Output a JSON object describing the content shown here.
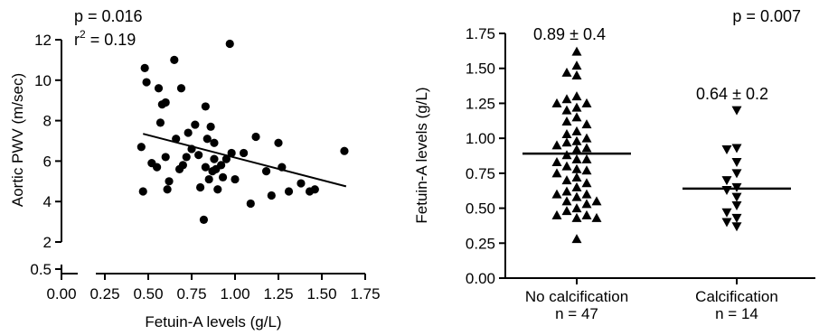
{
  "chart_data": [
    {
      "type": "scatter",
      "xlabel": "Fetuin-A levels (g/L)",
      "ylabel": "Aortic PWV (m/sec)",
      "annotations": {
        "p": "p = 0.016",
        "r2_prefix": "r",
        "r2_sup": "2",
        "r2_suffix": " = 0.19"
      },
      "xlim": [
        0.0,
        1.75
      ],
      "ylim": [
        2,
        12
      ],
      "y_break_tick": {
        "label": "0.5",
        "value": 0.5
      },
      "x_ticks": [
        "0.00",
        "0.25",
        "0.50",
        "0.75",
        "1.00",
        "1.25",
        "1.50",
        "1.75"
      ],
      "x_tick_values": [
        0.0,
        0.25,
        0.5,
        0.75,
        1.0,
        1.25,
        1.5,
        1.75
      ],
      "y_ticks": [
        "2",
        "4",
        "6",
        "8",
        "10",
        "12"
      ],
      "y_tick_values": [
        2,
        4,
        6,
        8,
        10,
        12
      ],
      "grid": false,
      "points": [
        [
          0.46,
          6.7
        ],
        [
          0.47,
          4.5
        ],
        [
          0.48,
          10.6
        ],
        [
          0.49,
          9.9
        ],
        [
          0.52,
          5.9
        ],
        [
          0.55,
          5.7
        ],
        [
          0.56,
          9.6
        ],
        [
          0.58,
          8.8
        ],
        [
          0.57,
          7.9
        ],
        [
          0.6,
          8.9
        ],
        [
          0.61,
          4.6
        ],
        [
          0.62,
          5.0
        ],
        [
          0.6,
          6.2
        ],
        [
          0.65,
          11.0
        ],
        [
          0.66,
          7.1
        ],
        [
          0.68,
          5.6
        ],
        [
          0.69,
          9.6
        ],
        [
          0.7,
          5.8
        ],
        [
          0.72,
          6.2
        ],
        [
          0.73,
          7.4
        ],
        [
          0.75,
          6.6
        ],
        [
          0.77,
          7.8
        ],
        [
          0.79,
          6.3
        ],
        [
          0.8,
          4.7
        ],
        [
          0.82,
          3.1
        ],
        [
          0.83,
          5.7
        ],
        [
          0.83,
          8.7
        ],
        [
          0.84,
          7.1
        ],
        [
          0.85,
          5.1
        ],
        [
          0.86,
          7.7
        ],
        [
          0.87,
          5.5
        ],
        [
          0.88,
          6.9
        ],
        [
          0.88,
          6.1
        ],
        [
          0.89,
          5.6
        ],
        [
          0.9,
          4.6
        ],
        [
          0.92,
          5.8
        ],
        [
          0.93,
          5.2
        ],
        [
          0.95,
          6.1
        ],
        [
          0.97,
          11.8
        ],
        [
          0.98,
          6.4
        ],
        [
          1.0,
          5.1
        ],
        [
          1.05,
          6.4
        ],
        [
          1.09,
          3.9
        ],
        [
          1.12,
          7.2
        ],
        [
          1.18,
          5.5
        ],
        [
          1.21,
          4.3
        ],
        [
          1.25,
          6.9
        ],
        [
          1.27,
          5.7
        ],
        [
          1.31,
          4.5
        ],
        [
          1.38,
          4.9
        ],
        [
          1.43,
          4.5
        ],
        [
          1.46,
          4.6
        ],
        [
          1.63,
          6.5
        ]
      ],
      "regression": {
        "x1": 0.47,
        "y1": 7.35,
        "x2": 1.64,
        "y2": 4.75
      }
    },
    {
      "type": "scatter",
      "ylabel": "Fetuin-A levels (g/L)",
      "ylim": [
        0.0,
        1.75
      ],
      "y_ticks": [
        "0.00",
        "0.25",
        "0.50",
        "0.75",
        "1.00",
        "1.25",
        "1.50",
        "1.75"
      ],
      "y_tick_values": [
        0.0,
        0.25,
        0.5,
        0.75,
        1.0,
        1.25,
        1.5,
        1.75
      ],
      "categories": [
        "No calcification",
        "Calcification"
      ],
      "category_n": [
        "n = 47",
        "n = 14"
      ],
      "p_value": "p = 0.007",
      "grid": false,
      "series": [
        {
          "category_index": 0,
          "marker": "triangle-up",
          "mean_label": "0.89 ± 0.4",
          "mean": 0.89,
          "values": [
            1.62,
            1.52,
            1.47,
            1.45,
            1.3,
            1.28,
            1.25,
            1.25,
            1.22,
            1.2,
            1.15,
            1.12,
            1.1,
            1.05,
            1.03,
            1.0,
            0.98,
            0.97,
            0.95,
            0.93,
            0.92,
            0.88,
            0.85,
            0.85,
            0.83,
            0.8,
            0.78,
            0.77,
            0.75,
            0.72,
            0.7,
            0.68,
            0.65,
            0.62,
            0.6,
            0.6,
            0.58,
            0.55,
            0.55,
            0.53,
            0.5,
            0.48,
            0.45,
            0.45,
            0.43,
            0.43,
            0.28
          ]
        },
        {
          "category_index": 1,
          "marker": "triangle-down",
          "mean_label": "0.64 ± 0.2",
          "mean": 0.64,
          "values": [
            1.2,
            0.93,
            0.92,
            0.83,
            0.75,
            0.7,
            0.65,
            0.63,
            0.58,
            0.52,
            0.47,
            0.43,
            0.4,
            0.37
          ]
        }
      ]
    }
  ]
}
